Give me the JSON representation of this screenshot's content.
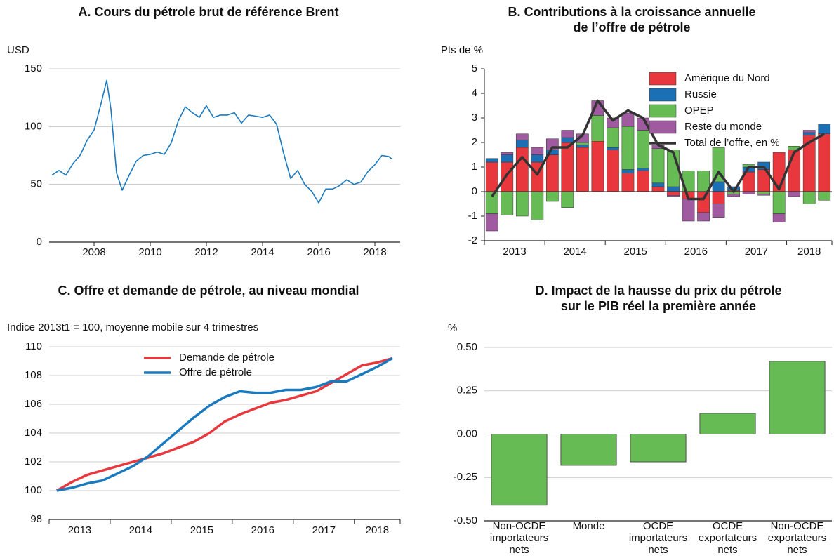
{
  "chart_data": [
    {
      "type": "line",
      "title": [
        "A. Cours du pétrole brut de référence Brent"
      ],
      "y_label": "USD",
      "x": [
        2006.5,
        2006.75,
        2007.0,
        2007.25,
        2007.5,
        2007.75,
        2008.0,
        2008.25,
        2008.45,
        2008.6,
        2008.8,
        2009.0,
        2009.25,
        2009.5,
        2009.75,
        2010.0,
        2010.25,
        2010.5,
        2010.75,
        2011.0,
        2011.25,
        2011.5,
        2011.75,
        2012.0,
        2012.25,
        2012.5,
        2012.75,
        2013.0,
        2013.25,
        2013.5,
        2013.75,
        2014.0,
        2014.25,
        2014.5,
        2014.75,
        2015.0,
        2015.25,
        2015.5,
        2015.75,
        2016.0,
        2016.25,
        2016.5,
        2016.75,
        2017.0,
        2017.25,
        2017.5,
        2017.75,
        2018.0,
        2018.25,
        2018.5,
        2018.6
      ],
      "series": [
        {
          "color": "#1a7abf",
          "values": [
            58,
            62,
            58,
            68,
            75,
            88,
            97,
            120,
            140,
            115,
            60,
            45,
            58,
            70,
            75,
            76,
            78,
            76,
            86,
            105,
            117,
            112,
            108,
            118,
            108,
            110,
            110,
            112,
            103,
            110,
            109,
            108,
            110,
            102,
            77,
            55,
            62,
            50,
            44,
            34,
            46,
            46,
            49,
            54,
            50,
            52,
            61,
            67,
            75,
            74,
            72
          ]
        }
      ],
      "xlim": [
        2006.4,
        2018.9
      ],
      "xticks": [
        2008,
        2010,
        2012,
        2014,
        2016,
        2018
      ],
      "ylim": [
        0,
        150
      ],
      "yticks": [
        0,
        50,
        100,
        150
      ],
      "grid": true
    },
    {
      "type": "bar",
      "stacked": true,
      "title": [
        "B. Contributions à la croissance annuelle",
        "de l’offre de pétrole"
      ],
      "y_label": "Pts de %",
      "categories": [
        null,
        null,
        null,
        null,
        null,
        null,
        null,
        null,
        null,
        null,
        null,
        null,
        null,
        null,
        null,
        null,
        null,
        null,
        null,
        null,
        null,
        null,
        null
      ],
      "x_labels": [
        "2013",
        "2014",
        "2015",
        "2016",
        "2017",
        "2018"
      ],
      "series": [
        {
          "name": "Amérique du Nord",
          "color": "#e8383d",
          "values": [
            1.2,
            1.2,
            1.8,
            1.2,
            1.5,
            2.0,
            1.8,
            2.05,
            1.7,
            0.75,
            0.85,
            0.2,
            -0.15,
            -0.3,
            -0.85,
            -0.5,
            0.05,
            0.8,
            0.9,
            1.6,
            1.7,
            2.3,
            2.35
          ]
        },
        {
          "name": "Russie",
          "color": "#1a6fb5",
          "values": [
            0.15,
            0.3,
            0.3,
            0.3,
            0.2,
            0.2,
            0.1,
            0.0,
            0.1,
            0.15,
            0.1,
            0.15,
            0.2,
            0.0,
            0.0,
            0.4,
            0.15,
            0.2,
            0.3,
            0.0,
            0.0,
            0.1,
            0.4
          ]
        },
        {
          "name": "OPEP",
          "color": "#66bb55",
          "values": [
            -0.9,
            -0.95,
            -1.0,
            -1.15,
            -0.4,
            -0.65,
            0.1,
            1.05,
            0.8,
            1.75,
            1.55,
            1.4,
            1.5,
            0.85,
            0.85,
            1.4,
            -0.1,
            0.1,
            -0.1,
            -0.9,
            0.15,
            -0.5,
            -0.35
          ]
        },
        {
          "name": "Reste du monde",
          "color": "#a05aa0",
          "values": [
            -0.7,
            0.1,
            0.25,
            0.3,
            0.45,
            0.3,
            0.35,
            0.6,
            0.4,
            0.55,
            0.5,
            0.15,
            -0.05,
            -0.9,
            -0.35,
            -0.55,
            -0.1,
            -0.1,
            -0.05,
            -0.35,
            -0.2,
            0.1,
            0.0
          ]
        },
        {
          "name": "Total de l’offre, en %",
          "type": "line",
          "color": "#333333",
          "values": [
            -0.2,
            0.7,
            1.4,
            0.7,
            1.8,
            1.8,
            2.3,
            3.7,
            2.9,
            3.3,
            3.0,
            1.9,
            1.6,
            -0.3,
            -0.3,
            0.8,
            0.0,
            1.0,
            1.0,
            0.1,
            1.6,
            2.0,
            2.35
          ]
        }
      ],
      "ylim": [
        -2,
        5
      ],
      "yticks": [
        5,
        4,
        3,
        2,
        1,
        0,
        -1,
        -2
      ],
      "grid": false
    },
    {
      "type": "line",
      "title": [
        "C. Offre et demande de pétrole, au niveau mondial"
      ],
      "y_label": "Indice 2013t1 = 100, moyenne mobile sur 4 trimestres",
      "categories": [
        null,
        null,
        null,
        null,
        null,
        null,
        null,
        null,
        null,
        null,
        null,
        null,
        null,
        null,
        null,
        null,
        null,
        null,
        null,
        null,
        null,
        null,
        null
      ],
      "x_labels": [
        "2013",
        "2014",
        "2015",
        "2016",
        "2017",
        "2018"
      ],
      "series": [
        {
          "name": "Demande de pétrole",
          "color": "#e8383d",
          "values": [
            100,
            100.6,
            101.1,
            101.4,
            101.7,
            102.0,
            102.3,
            102.6,
            103.0,
            103.4,
            104.0,
            104.8,
            105.3,
            105.7,
            106.1,
            106.3,
            106.6,
            106.9,
            107.5,
            108.1,
            108.7,
            108.9,
            109.2
          ]
        },
        {
          "name": "Offre de pétrole",
          "color": "#1a7abf",
          "values": [
            100,
            100.2,
            100.5,
            100.7,
            101.2,
            101.7,
            102.4,
            103.3,
            104.2,
            105.1,
            105.9,
            106.5,
            106.9,
            106.8,
            106.8,
            107.0,
            107.0,
            107.2,
            107.6,
            107.6,
            108.1,
            108.6,
            109.2
          ]
        }
      ],
      "ylim": [
        98,
        110
      ],
      "yticks": [
        98,
        100,
        102,
        104,
        106,
        108,
        110
      ],
      "grid": true
    },
    {
      "type": "bar",
      "title": [
        "D. Impact de la hausse du prix du pétrole",
        "sur le PIB réel la première année"
      ],
      "y_label": "%",
      "categories": [
        [
          "Non-OCDE",
          "importateurs",
          "nets"
        ],
        [
          "Monde"
        ],
        [
          "OCDE",
          "importateurs",
          "nets"
        ],
        [
          "OCDE",
          "exportateurs",
          "nets"
        ],
        [
          "Non-OCDE",
          "exportateurs",
          "nets"
        ]
      ],
      "values": [
        -0.41,
        -0.18,
        -0.16,
        0.12,
        0.42
      ],
      "color": "#66bb55",
      "ylim": [
        -0.5,
        0.5
      ],
      "yticks": [
        {
          "value": 0.5,
          "label": "0.50"
        },
        {
          "value": 0.25,
          "label": "0.25"
        },
        {
          "value": 0,
          "label": "0.00"
        },
        {
          "value": -0.25,
          "label": "-0.25"
        },
        {
          "value": -0.5,
          "label": "-0.50"
        }
      ],
      "grid": true
    }
  ]
}
